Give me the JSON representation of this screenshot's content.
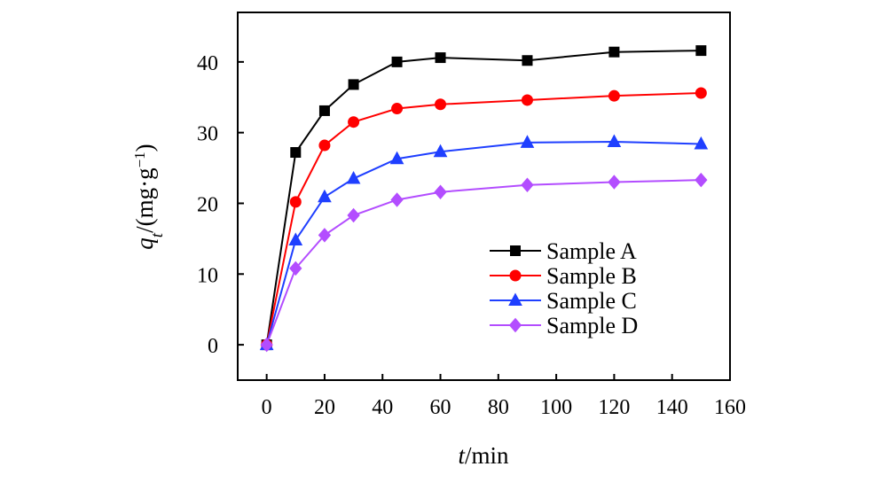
{
  "chart_data": {
    "type": "line",
    "title": "",
    "xlabel": {
      "italic": "t",
      "rest": "/min"
    },
    "ylabel": {
      "italic": "q",
      "sub": "t",
      "rest": "/(mg·g",
      "sup": "−1",
      "close": ")"
    },
    "xlim": [
      -10,
      160
    ],
    "ylim": [
      -5,
      47
    ],
    "xticks": [
      0,
      20,
      40,
      60,
      80,
      100,
      120,
      140,
      160
    ],
    "yticks": [
      0,
      10,
      20,
      30,
      40
    ],
    "grid": false,
    "legend_position": "bottom-right",
    "x": [
      0,
      10,
      20,
      30,
      45,
      60,
      90,
      120,
      150
    ],
    "series": [
      {
        "name": "Sample A",
        "color": "#000000",
        "marker": "square",
        "values": [
          0,
          27.2,
          33.1,
          36.8,
          40.0,
          40.6,
          40.2,
          41.4,
          41.6
        ]
      },
      {
        "name": "Sample B",
        "color": "#ff0000",
        "marker": "circle",
        "values": [
          0,
          20.2,
          28.2,
          31.5,
          33.4,
          34.0,
          34.6,
          35.2,
          35.6
        ]
      },
      {
        "name": "Sample C",
        "color": "#1f3fff",
        "marker": "triangle",
        "values": [
          0,
          14.8,
          20.9,
          23.5,
          26.3,
          27.3,
          28.6,
          28.7,
          28.4
        ]
      },
      {
        "name": "Sample D",
        "color": "#b34dff",
        "marker": "diamond",
        "values": [
          0,
          10.8,
          15.5,
          18.3,
          20.5,
          21.6,
          22.6,
          23.0,
          23.3
        ]
      }
    ]
  }
}
